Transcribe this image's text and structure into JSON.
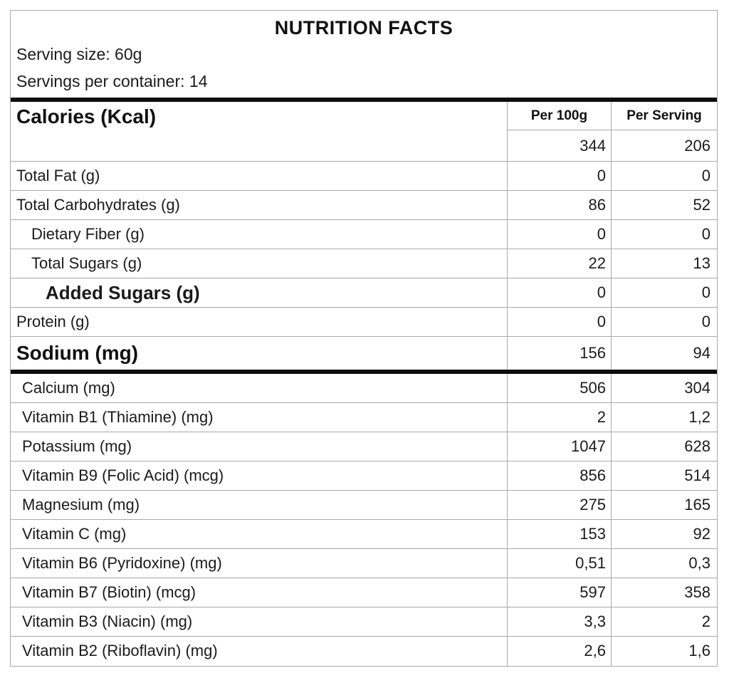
{
  "header": {
    "title": "NUTRITION FACTS",
    "serving_size": "Serving size: 60g",
    "servings_per_container": "Servings per container: 14"
  },
  "columns": {
    "per_100g": "Per 100g",
    "per_serving": "Per Serving"
  },
  "calories": {
    "label": "Calories (Kcal)",
    "per_100g": "344",
    "per_serving": "206"
  },
  "macros": [
    {
      "label": "Total Fat (g)",
      "per_100g": "0",
      "per_serving": "0"
    },
    {
      "label": "Total Carbohydrates (g)",
      "per_100g": "86",
      "per_serving": "52"
    },
    {
      "label": "Dietary Fiber (g)",
      "per_100g": "0",
      "per_serving": "0"
    },
    {
      "label": "Total Sugars (g)",
      "per_100g": "22",
      "per_serving": "13"
    },
    {
      "label": "Added Sugars (g)",
      "per_100g": "0",
      "per_serving": "0"
    },
    {
      "label": "Protein (g)",
      "per_100g": "0",
      "per_serving": "0"
    },
    {
      "label": "Sodium (mg)",
      "per_100g": "156",
      "per_serving": "94"
    }
  ],
  "micros": [
    {
      "label": "Calcium (mg)",
      "per_100g": "506",
      "per_serving": "304"
    },
    {
      "label": "Vitamin B1 (Thiamine) (mg)",
      "per_100g": "2",
      "per_serving": "1,2"
    },
    {
      "label": "Potassium (mg)",
      "per_100g": "1047",
      "per_serving": "628"
    },
    {
      "label": "Vitamin B9 (Folic Acid) (mcg)",
      "per_100g": "856",
      "per_serving": "514"
    },
    {
      "label": "Magnesium (mg)",
      "per_100g": "275",
      "per_serving": "165"
    },
    {
      "label": "Vitamin C (mg)",
      "per_100g": "153",
      "per_serving": "92"
    },
    {
      "label": "Vitamin B6 (Pyridoxine) (mg)",
      "per_100g": "0,51",
      "per_serving": "0,3"
    },
    {
      "label": "Vitamin B7 (Biotin) (mcg)",
      "per_100g": "597",
      "per_serving": "358"
    },
    {
      "label": "Vitamin B3 (Niacin) (mg)",
      "per_100g": "3,3",
      "per_serving": "2"
    },
    {
      "label": "Vitamin B2 (Riboflavin) (mg)",
      "per_100g": "2,6",
      "per_serving": "1,6"
    }
  ],
  "colors": {
    "text": "#1b1b1b",
    "thick_rule": "#0d0d0d",
    "grid_line": "#a9a9a9",
    "background": "#ffffff"
  }
}
